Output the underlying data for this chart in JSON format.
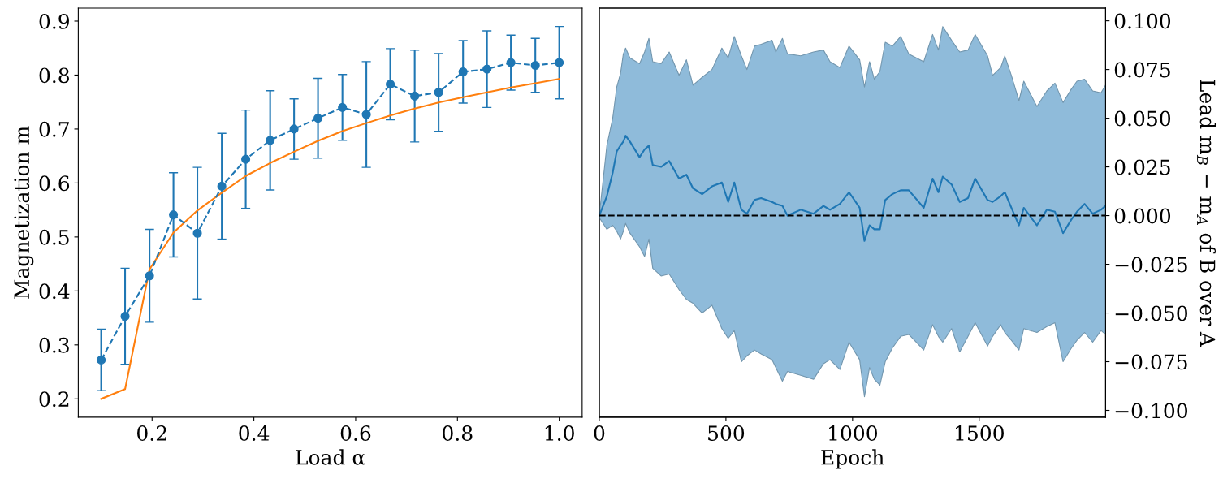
{
  "chart_data": [
    {
      "type": "line",
      "xlabel": "Load α",
      "ylabel": "Magnetization m",
      "x": [
        0.1,
        0.147,
        0.195,
        0.242,
        0.289,
        0.337,
        0.384,
        0.432,
        0.479,
        0.526,
        0.574,
        0.621,
        0.668,
        0.716,
        0.763,
        0.811,
        0.858,
        0.905,
        0.953,
        1.0
      ],
      "series": [
        {
          "color": "#1f77b4",
          "marker": "circle",
          "line_style": "dashed",
          "values": [
            0.272,
            0.353,
            0.428,
            0.541,
            0.507,
            0.594,
            0.644,
            0.679,
            0.7,
            0.72,
            0.74,
            0.727,
            0.783,
            0.761,
            0.768,
            0.806,
            0.811,
            0.823,
            0.818,
            0.823
          ],
          "errors": [
            0.057,
            0.089,
            0.086,
            0.078,
            0.122,
            0.098,
            0.091,
            0.092,
            0.056,
            0.074,
            0.061,
            0.098,
            0.066,
            0.085,
            0.072,
            0.058,
            0.071,
            0.051,
            0.05,
            0.067
          ]
        },
        {
          "color": "#ff7f0e",
          "marker": "none",
          "line_style": "solid",
          "values": [
            0.2,
            0.218,
            0.44,
            0.508,
            0.549,
            0.582,
            0.613,
            0.637,
            0.658,
            0.678,
            0.696,
            0.711,
            0.725,
            0.738,
            0.749,
            0.759,
            0.768,
            0.777,
            0.785,
            0.793
          ]
        }
      ],
      "xlim": [
        0.055,
        1.045
      ],
      "ylim": [
        0.166,
        0.924
      ],
      "xticks": [
        0.2,
        0.4,
        0.6,
        0.8,
        {
          "value": 1.0,
          "label": "1.0"
        }
      ],
      "yticks": [
        0.2,
        0.3,
        0.4,
        0.5,
        0.6,
        0.7,
        0.8,
        0.9
      ],
      "grid": false
    },
    {
      "type": "line",
      "xlabel": "Epoch",
      "y2label": "Lead m$_{B}$ − m$_{A}$ of B over A",
      "series": [
        {
          "type": "line",
          "color": "#1f77b4",
          "axis": "y2",
          "marker": "none",
          "line_style": "solid",
          "values": [
            0.0,
            0.01,
            0.022,
            0.033,
            0.036,
            0.038,
            0.041,
            0.038,
            0.03,
            0.034,
            0.036,
            0.026,
            0.025,
            0.028,
            0.019,
            0.021,
            0.014,
            0.011,
            0.015,
            0.017,
            0.007,
            0.017,
            0.003,
            0.001,
            0.008,
            0.009,
            0.007,
            0.006,
            0.005,
            0.0,
            0.003,
            0.001,
            0.005,
            0.003,
            0.006,
            0.012,
            0.004,
            -0.013,
            -0.005,
            -0.007,
            -0.007,
            0.008,
            0.011,
            0.013,
            0.013,
            0.004,
            0.019,
            0.012,
            0.02,
            0.016,
            0.007,
            0.009,
            0.019,
            0.008,
            0.007,
            0.01,
            0.012,
            0.004,
            -0.005,
            0.004,
            -0.005,
            0.003,
            0.002,
            -0.009,
            -0.002,
            0.002,
            0.006,
            0.001,
            0.003,
            0.005
          ],
          "x": [
            0,
            30,
            53,
            69,
            84,
            95,
            104,
            121,
            159,
            179,
            196,
            211,
            244,
            276,
            315,
            344,
            370,
            406,
            445,
            484,
            509,
            533,
            561,
            583,
            613,
            639,
            682,
            697,
            723,
            743,
            795,
            846,
            885,
            911,
            950,
            986,
            1028,
            1047,
            1067,
            1086,
            1108,
            1129,
            1157,
            1190,
            1222,
            1281,
            1316,
            1339,
            1356,
            1391,
            1423,
            1456,
            1484,
            1533,
            1553,
            1585,
            1601,
            1627,
            1657,
            1676,
            1728,
            1767,
            1799,
            1831,
            1864,
            1886,
            1916,
            1948,
            1981,
            1999
          ],
          "upper": [
            0.0,
            0.036,
            0.05,
            0.066,
            0.073,
            0.083,
            0.086,
            0.081,
            0.078,
            0.084,
            0.091,
            0.079,
            0.078,
            0.084,
            0.072,
            0.08,
            0.067,
            0.071,
            0.075,
            0.086,
            0.081,
            0.092,
            0.082,
            0.075,
            0.087,
            0.088,
            0.09,
            0.084,
            0.091,
            0.083,
            0.082,
            0.084,
            0.085,
            0.079,
            0.076,
            0.087,
            0.08,
            0.066,
            0.079,
            0.07,
            0.074,
            0.089,
            0.087,
            0.092,
            0.083,
            0.079,
            0.093,
            0.085,
            0.097,
            0.09,
            0.084,
            0.085,
            0.093,
            0.082,
            0.072,
            0.076,
            0.082,
            0.072,
            0.059,
            0.069,
            0.056,
            0.064,
            0.068,
            0.058,
            0.065,
            0.069,
            0.07,
            0.064,
            0.063,
            0.067
          ],
          "lower": [
            -0.001,
            -0.007,
            -0.005,
            -0.008,
            -0.012,
            -0.008,
            -0.004,
            -0.009,
            -0.016,
            -0.021,
            -0.012,
            -0.027,
            -0.031,
            -0.03,
            -0.038,
            -0.043,
            -0.045,
            -0.05,
            -0.046,
            -0.058,
            -0.063,
            -0.059,
            -0.075,
            -0.072,
            -0.069,
            -0.071,
            -0.074,
            -0.078,
            -0.085,
            -0.08,
            -0.082,
            -0.084,
            -0.076,
            -0.074,
            -0.079,
            -0.065,
            -0.074,
            -0.093,
            -0.078,
            -0.084,
            -0.087,
            -0.075,
            -0.068,
            -0.062,
            -0.061,
            -0.069,
            -0.056,
            -0.062,
            -0.065,
            -0.058,
            -0.07,
            -0.062,
            -0.055,
            -0.067,
            -0.062,
            -0.056,
            -0.06,
            -0.064,
            -0.069,
            -0.058,
            -0.06,
            -0.057,
            -0.055,
            -0.075,
            -0.068,
            -0.064,
            -0.06,
            -0.065,
            -0.059,
            -0.061
          ]
        }
      ],
      "ref_lines": [
        {
          "axis": "y2",
          "value": 0,
          "color": "#000000",
          "line_style": "dashed"
        }
      ],
      "xlim": [
        0,
        1999
      ],
      "xticks": [
        0,
        500,
        1000,
        1500
      ],
      "y2lim": [
        -0.1035,
        0.1065
      ],
      "y2ticks": [
        {
          "value": -0.1,
          "label": "−0.100"
        },
        {
          "value": -0.075,
          "label": "−0.075"
        },
        {
          "value": -0.05,
          "label": "−0.050"
        },
        {
          "value": -0.025,
          "label": "−0.025"
        },
        {
          "value": 0,
          "label": "0.000"
        },
        {
          "value": 0.025,
          "label": "0.025"
        },
        {
          "value": 0.05,
          "label": "0.050"
        },
        {
          "value": 0.075,
          "label": "0.075"
        },
        {
          "value": 0.1,
          "label": "0.100"
        }
      ],
      "grid": false
    }
  ]
}
